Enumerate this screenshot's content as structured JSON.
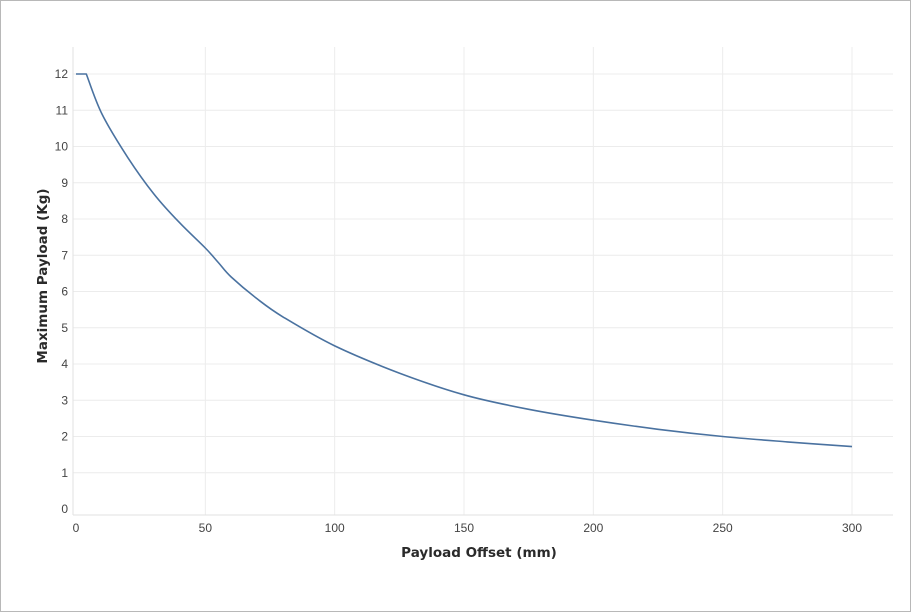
{
  "chart_data": {
    "type": "line",
    "xlabel": "Payload Offset (mm)",
    "ylabel": "Maximum Payload (Kg)",
    "xlim": [
      0,
      300
    ],
    "ylim": [
      0,
      12
    ],
    "x_ticks": [
      "0",
      "50",
      "100",
      "150",
      "200",
      "250",
      "300"
    ],
    "y_ticks": [
      "0",
      "1",
      "2",
      "3",
      "4",
      "5",
      "6",
      "7",
      "8",
      "9",
      "10",
      "11",
      "12"
    ],
    "grid": true,
    "line_color": "#4a72a0",
    "series": [
      {
        "x": [
          0,
          4,
          10,
          20,
          30,
          40,
          50,
          55,
          60,
          70,
          80,
          100,
          125,
          150,
          175,
          200,
          225,
          250,
          275,
          300
        ],
        "values": [
          12,
          12,
          10.9,
          9.7,
          8.7,
          7.9,
          7.2,
          6.8,
          6.4,
          5.8,
          5.3,
          4.5,
          3.75,
          3.15,
          2.75,
          2.45,
          2.2,
          2.0,
          1.85,
          1.72
        ]
      }
    ]
  }
}
